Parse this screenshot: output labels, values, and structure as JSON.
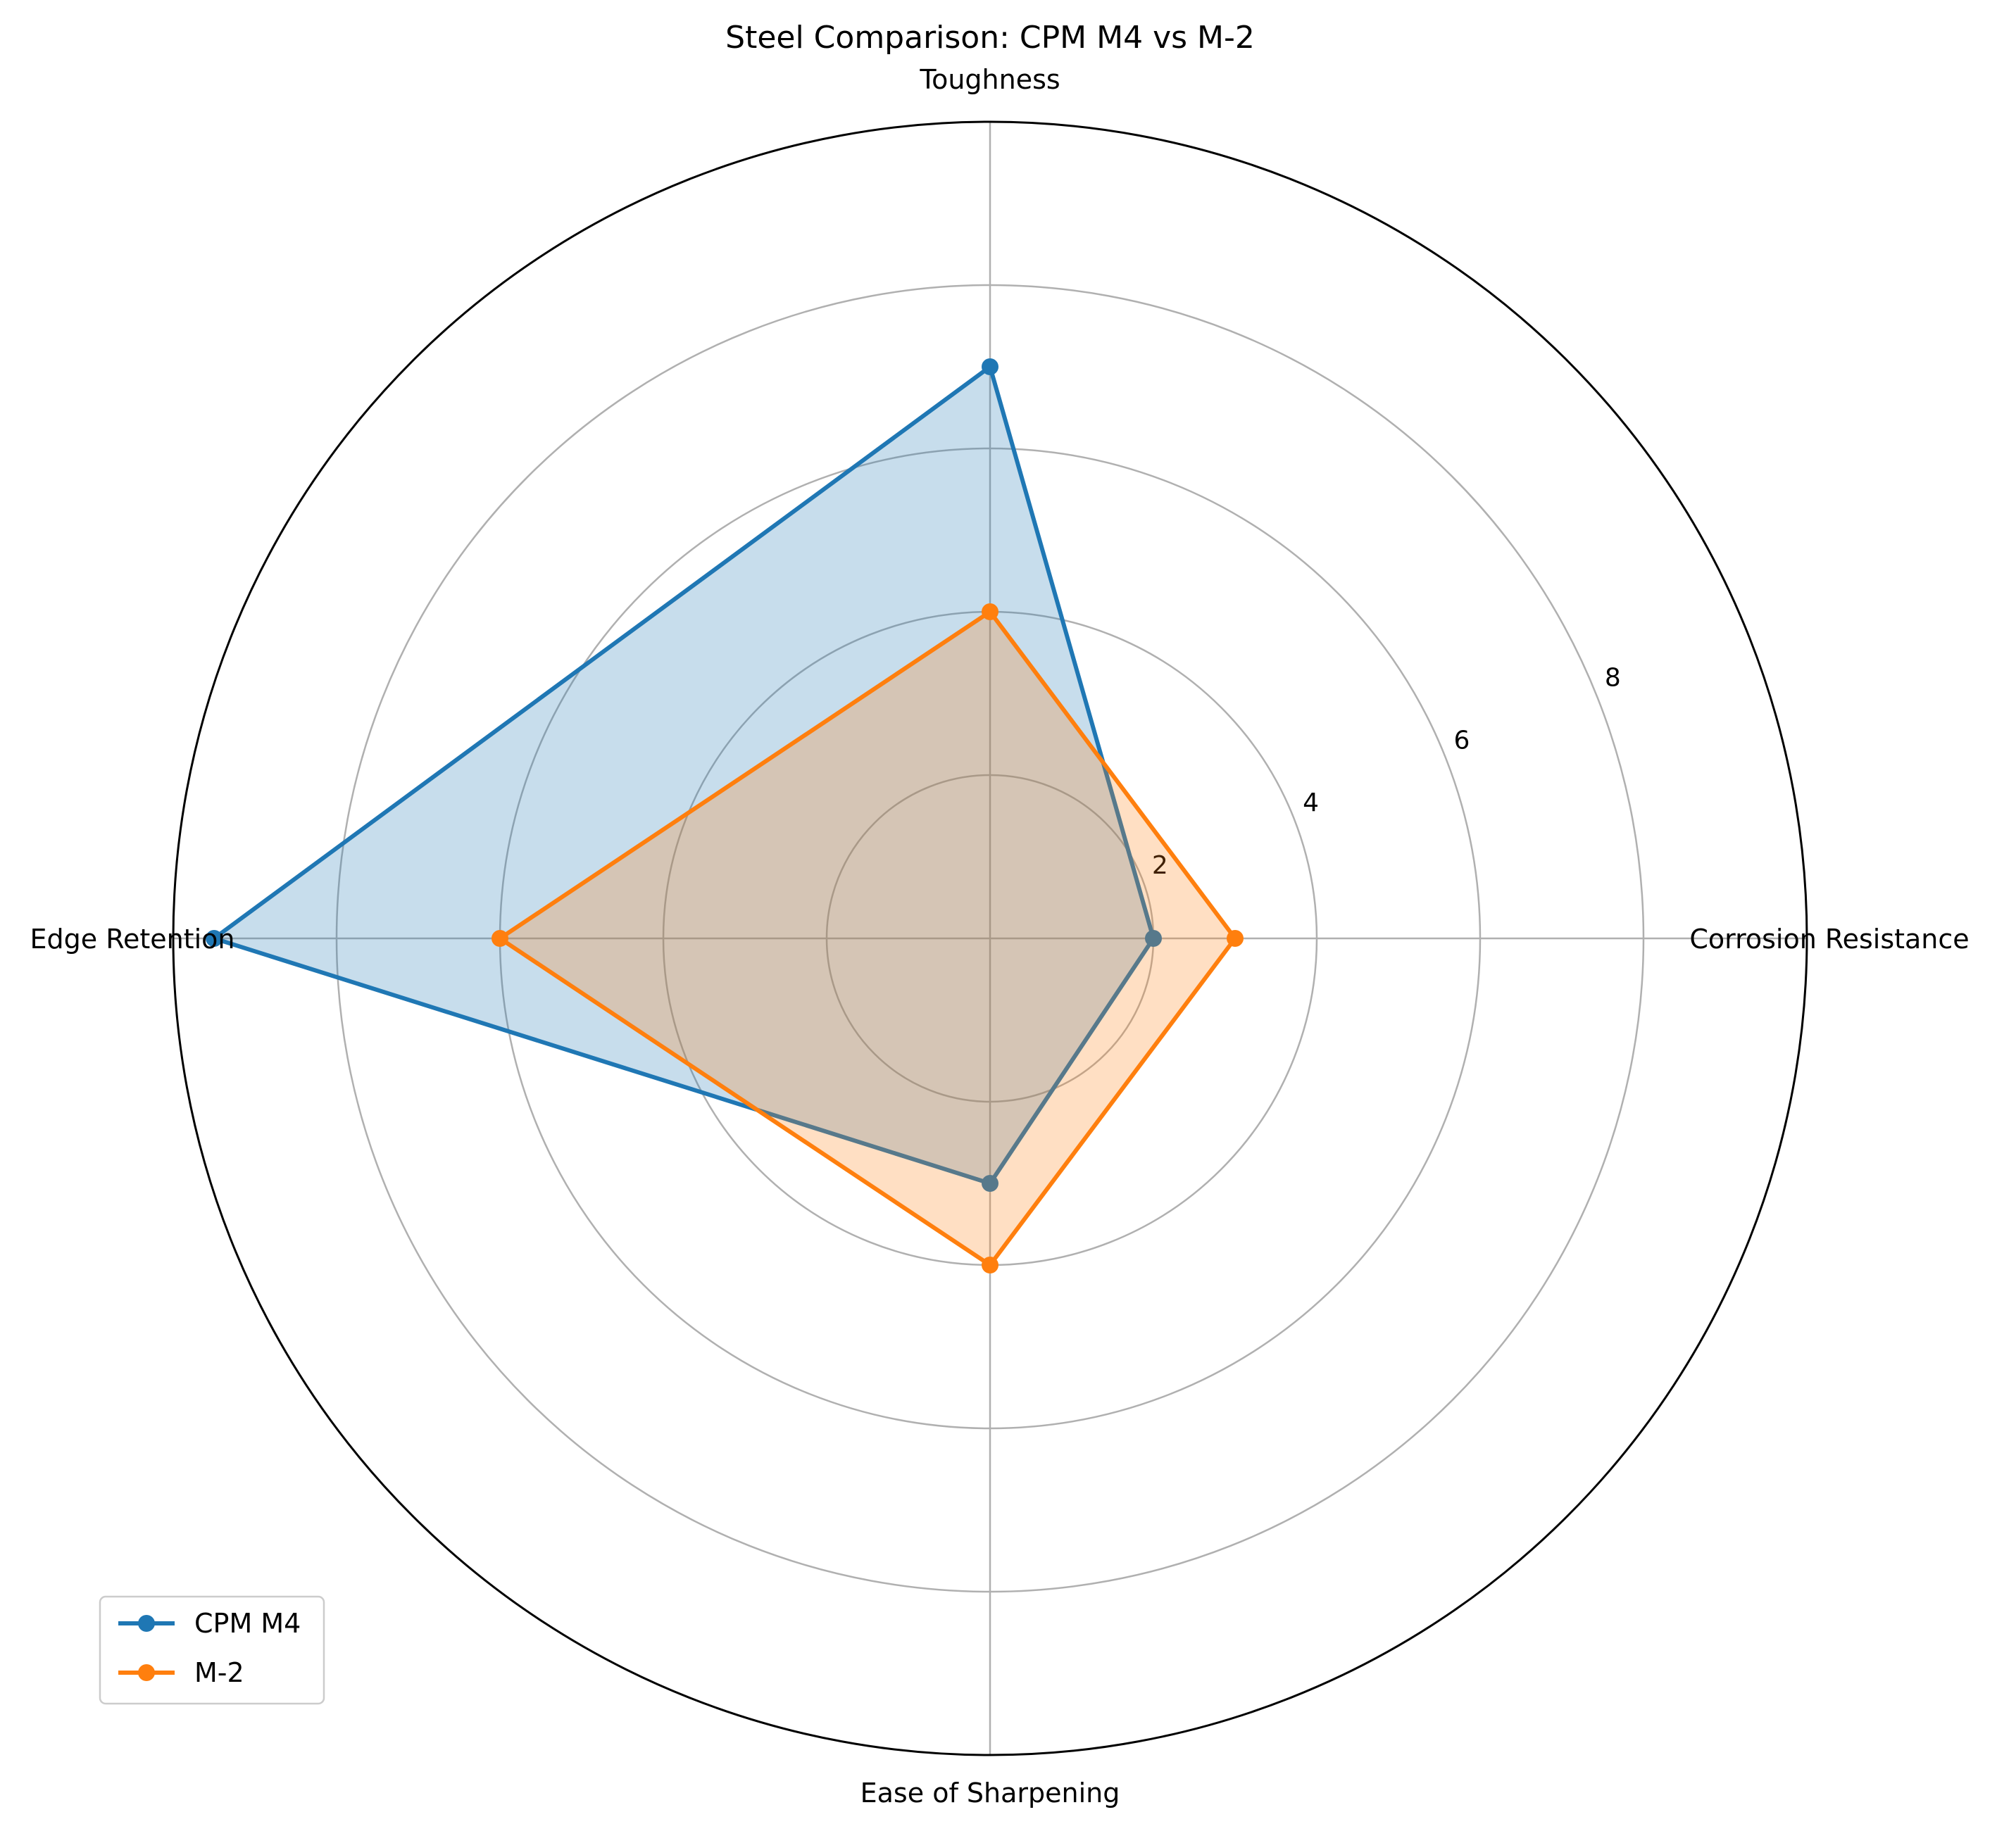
{
  "chart_data": {
    "type": "radar",
    "title": "Steel Comparison: CPM M4 vs M-2",
    "axes": [
      "Corrosion Resistance",
      "Toughness",
      "Edge Retention",
      "Ease of Sharpening"
    ],
    "r_ticks": [
      2,
      4,
      6,
      8
    ],
    "rlim": [
      0,
      10
    ],
    "grid": true,
    "legend_position": "lower-left",
    "series": [
      {
        "name": "CPM M4",
        "color": "#1f77b4",
        "values": [
          2,
          7,
          9.5,
          3
        ]
      },
      {
        "name": "M-2",
        "color": "#ff7f0e",
        "values": [
          3,
          4,
          6,
          4
        ]
      }
    ]
  }
}
